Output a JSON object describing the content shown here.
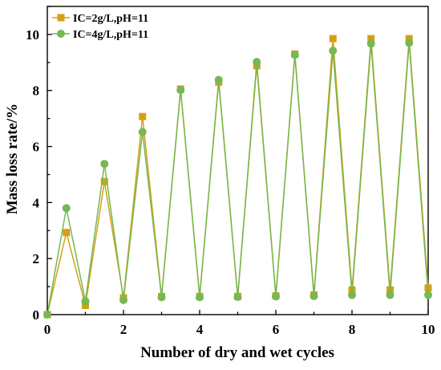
{
  "chart_data": {
    "type": "line",
    "xlabel": "Number of dry and wet cycles",
    "ylabel": "Mass loss rate/%",
    "xlim": [
      0,
      10
    ],
    "ylim": [
      0,
      11
    ],
    "xticks": [
      0,
      2,
      4,
      6,
      8,
      10
    ],
    "yticks": [
      0,
      2,
      4,
      6,
      8,
      10
    ],
    "xtick_labels": [
      "0",
      "2",
      "4",
      "6",
      "8",
      "10"
    ],
    "ytick_labels": [
      "0",
      "2",
      "4",
      "6",
      "8",
      "10"
    ],
    "grid": false,
    "legend_position": "top-left",
    "series": [
      {
        "name": "IC=2g/L,pH=11",
        "color": "#d4a017",
        "marker": "square",
        "x": [
          0,
          0.5,
          1,
          1.5,
          2,
          2.5,
          3,
          3.5,
          4,
          4.5,
          5,
          5.5,
          6,
          6.5,
          7,
          7.5,
          8,
          8.5,
          9,
          9.5,
          10
        ],
        "y": [
          0,
          2.93,
          0.33,
          4.75,
          0.6,
          7.07,
          0.65,
          8.05,
          0.65,
          8.3,
          0.65,
          8.88,
          0.67,
          9.3,
          0.7,
          9.85,
          0.88,
          9.85,
          0.88,
          9.85,
          0.95
        ]
      },
      {
        "name": "IC=4g/L,pH=11",
        "color": "#76b852",
        "marker": "circle",
        "x": [
          0,
          0.5,
          1,
          1.5,
          2,
          2.5,
          3,
          3.5,
          4,
          4.5,
          5,
          5.5,
          6,
          6.5,
          7,
          7.5,
          8,
          8.5,
          9,
          9.5,
          10
        ],
        "y": [
          0,
          3.8,
          0.48,
          5.38,
          0.52,
          6.52,
          0.62,
          8.02,
          0.62,
          8.38,
          0.63,
          9.02,
          0.65,
          9.27,
          0.66,
          9.42,
          0.7,
          9.67,
          0.7,
          9.7,
          0.7
        ]
      }
    ]
  }
}
